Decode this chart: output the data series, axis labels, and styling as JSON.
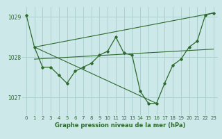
{
  "title": "Graphe pression niveau de la mer (hPa)",
  "bg_color": "#cce8e8",
  "grid_color": "#aacccc",
  "line_color": "#2d6a2d",
  "text_color": "#2d6a2d",
  "xlim": [
    -0.5,
    23.5
  ],
  "ylim": [
    1026.55,
    1029.25
  ],
  "yticks": [
    1027,
    1028,
    1029
  ],
  "xticks": [
    0,
    1,
    2,
    3,
    4,
    5,
    6,
    7,
    8,
    9,
    10,
    11,
    12,
    13,
    14,
    15,
    16,
    17,
    18,
    19,
    20,
    21,
    22,
    23
  ],
  "hours": [
    0,
    1,
    2,
    3,
    4,
    5,
    6,
    7,
    8,
    9,
    10,
    11,
    12,
    13,
    14,
    15,
    16,
    17,
    18,
    19,
    20,
    21,
    22,
    23
  ],
  "pressure": [
    1029.05,
    1028.25,
    1027.75,
    1027.75,
    1027.55,
    1027.35,
    1027.65,
    1027.75,
    1027.85,
    1028.05,
    1028.15,
    1028.5,
    1028.1,
    1028.05,
    1027.15,
    1026.85,
    1026.85,
    1027.35,
    1027.8,
    1027.95,
    1028.25,
    1028.4,
    1029.05,
    1029.1
  ],
  "trend1_x": [
    1,
    23
  ],
  "trend1_y": [
    1028.25,
    1029.1
  ],
  "trend2_x": [
    1,
    16
  ],
  "trend2_y": [
    1028.25,
    1026.85
  ],
  "trend3_x": [
    1,
    23
  ],
  "trend3_y": [
    1027.95,
    1028.2
  ]
}
